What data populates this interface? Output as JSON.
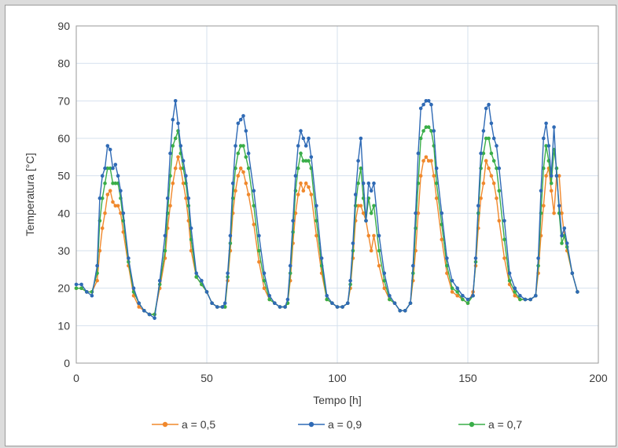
{
  "chart_data": {
    "type": "line",
    "title": "",
    "xlabel": "Tempo [h]",
    "ylabel": "Temperatura [°C]",
    "xlim": [
      0,
      200
    ],
    "ylim": [
      0,
      90
    ],
    "xticks": [
      "0",
      "50",
      "100",
      "150",
      "200"
    ],
    "yticks": [
      "0",
      "10",
      "20",
      "30",
      "40",
      "50",
      "60",
      "70",
      "80",
      "90"
    ],
    "grid": true,
    "legend_position": "bottom",
    "series": [
      {
        "name": "a = 0,5",
        "color": "#f0882c",
        "x": [
          0,
          2,
          4,
          6,
          8,
          9,
          10,
          11,
          12,
          13,
          14,
          15,
          16,
          17,
          18,
          20,
          22,
          24,
          26,
          28,
          30,
          32,
          34,
          35,
          36,
          37,
          38,
          39,
          40,
          41,
          42,
          43,
          44,
          46,
          48,
          50,
          52,
          54,
          56,
          57,
          58,
          59,
          60,
          61,
          62,
          63,
          64,
          65,
          66,
          68,
          70,
          72,
          74,
          76,
          78,
          80,
          81,
          82,
          83,
          84,
          85,
          86,
          87,
          88,
          89,
          90,
          92,
          94,
          96,
          98,
          100,
          102,
          104,
          105,
          106,
          107,
          108,
          109,
          110,
          111,
          112,
          113,
          114,
          116,
          118,
          120,
          122,
          124,
          126,
          128,
          129,
          130,
          131,
          132,
          133,
          134,
          135,
          136,
          137,
          138,
          140,
          142,
          144,
          146,
          148,
          150,
          152,
          153,
          154,
          155,
          156,
          157,
          158,
          159,
          160,
          161,
          162,
          164,
          166,
          168,
          170,
          172,
          174,
          176,
          177,
          178,
          179,
          180,
          181,
          182,
          183,
          184,
          185,
          186,
          187,
          188,
          190,
          192
        ],
        "values": [
          20,
          20,
          19,
          19,
          22,
          30,
          36,
          40,
          45,
          46,
          43,
          42,
          42,
          40,
          35,
          26,
          18,
          15,
          14,
          13,
          13,
          20,
          28,
          36,
          42,
          48,
          52,
          55,
          52,
          48,
          44,
          38,
          30,
          23,
          21,
          19,
          16,
          15,
          15,
          15,
          22,
          30,
          40,
          46,
          50,
          52,
          51,
          48,
          45,
          37,
          27,
          20,
          17,
          16,
          15,
          15,
          16,
          22,
          32,
          40,
          45,
          48,
          46,
          48,
          47,
          45,
          34,
          24,
          17,
          16,
          15,
          15,
          16,
          20,
          28,
          38,
          42,
          42,
          40,
          38,
          34,
          30,
          34,
          26,
          20,
          17,
          16,
          14,
          14,
          16,
          22,
          30,
          40,
          50,
          54,
          55,
          54,
          54,
          50,
          44,
          33,
          24,
          19,
          18,
          17,
          16,
          19,
          26,
          36,
          44,
          48,
          54,
          52,
          50,
          48,
          44,
          38,
          28,
          21,
          18,
          17,
          17,
          17,
          18,
          24,
          34,
          42,
          50,
          52,
          46,
          40,
          50,
          50,
          40,
          34,
          30,
          24,
          19
        ]
      },
      {
        "name": "a = 0,9",
        "color": "#2f6ab5",
        "x": [
          0,
          2,
          4,
          6,
          8,
          9,
          10,
          11,
          12,
          13,
          14,
          15,
          16,
          17,
          18,
          20,
          22,
          24,
          26,
          28,
          30,
          32,
          34,
          35,
          36,
          37,
          38,
          39,
          40,
          41,
          42,
          43,
          44,
          46,
          48,
          50,
          52,
          54,
          56,
          57,
          58,
          59,
          60,
          61,
          62,
          63,
          64,
          65,
          66,
          68,
          70,
          72,
          74,
          76,
          78,
          80,
          81,
          82,
          83,
          84,
          85,
          86,
          87,
          88,
          89,
          90,
          92,
          94,
          96,
          98,
          100,
          102,
          104,
          105,
          106,
          107,
          108,
          109,
          110,
          111,
          112,
          113,
          114,
          116,
          118,
          120,
          122,
          124,
          126,
          128,
          129,
          130,
          131,
          132,
          133,
          134,
          135,
          136,
          137,
          138,
          140,
          142,
          144,
          146,
          148,
          150,
          152,
          153,
          154,
          155,
          156,
          157,
          158,
          159,
          160,
          161,
          162,
          164,
          166,
          168,
          170,
          172,
          174,
          176,
          177,
          178,
          179,
          180,
          181,
          182,
          183,
          184,
          185,
          186,
          187,
          188,
          190,
          192
        ],
        "values": [
          21,
          21,
          19,
          18,
          26,
          44,
          50,
          52,
          58,
          57,
          52,
          53,
          50,
          46,
          40,
          28,
          20,
          16,
          14,
          13,
          12,
          22,
          34,
          44,
          56,
          65,
          70,
          64,
          58,
          54,
          50,
          44,
          36,
          24,
          22,
          19,
          16,
          15,
          15,
          16,
          24,
          34,
          48,
          58,
          64,
          65,
          66,
          62,
          56,
          46,
          34,
          24,
          18,
          16,
          15,
          15,
          17,
          26,
          38,
          50,
          58,
          62,
          60,
          58,
          60,
          55,
          42,
          28,
          18,
          16,
          15,
          15,
          16,
          22,
          32,
          45,
          54,
          60,
          48,
          38,
          48,
          46,
          48,
          34,
          24,
          18,
          16,
          14,
          14,
          16,
          26,
          40,
          56,
          68,
          69,
          70,
          70,
          69,
          62,
          52,
          40,
          28,
          22,
          20,
          18,
          17,
          18,
          28,
          42,
          56,
          62,
          68,
          69,
          64,
          60,
          58,
          52,
          38,
          24,
          20,
          18,
          17,
          17,
          18,
          28,
          46,
          60,
          64,
          58,
          50,
          63,
          50,
          42,
          34,
          36,
          32,
          24,
          19
        ]
      },
      {
        "name": "a = 0,7",
        "color": "#3aae49",
        "x": [
          0,
          2,
          4,
          6,
          8,
          9,
          10,
          11,
          12,
          13,
          14,
          15,
          16,
          17,
          18,
          20,
          22,
          24,
          26,
          28,
          30,
          32,
          34,
          35,
          36,
          37,
          38,
          39,
          40,
          41,
          42,
          43,
          44,
          46,
          48,
          50,
          52,
          54,
          56,
          57,
          58,
          59,
          60,
          61,
          62,
          63,
          64,
          65,
          66,
          68,
          70,
          72,
          74,
          76,
          78,
          80,
          81,
          82,
          83,
          84,
          85,
          86,
          87,
          88,
          89,
          90,
          92,
          94,
          96,
          98,
          100,
          102,
          104,
          105,
          106,
          107,
          108,
          109,
          110,
          111,
          112,
          113,
          114,
          116,
          118,
          120,
          122,
          124,
          126,
          128,
          129,
          130,
          131,
          132,
          133,
          134,
          135,
          136,
          137,
          138,
          140,
          142,
          144,
          146,
          148,
          150,
          152,
          153,
          154,
          155,
          156,
          157,
          158,
          159,
          160,
          161,
          162,
          164,
          166,
          168,
          170,
          172,
          174,
          176,
          177,
          178,
          179,
          180,
          181,
          182,
          183,
          184,
          185,
          186,
          187,
          188,
          190,
          192
        ],
        "values": [
          20,
          20,
          19,
          19,
          24,
          38,
          44,
          48,
          52,
          52,
          48,
          48,
          48,
          44,
          38,
          27,
          19,
          16,
          14,
          13,
          13,
          21,
          30,
          40,
          50,
          58,
          60,
          62,
          56,
          52,
          48,
          42,
          33,
          23,
          21,
          19,
          16,
          15,
          15,
          15,
          23,
          32,
          44,
          52,
          56,
          58,
          58,
          55,
          52,
          42,
          30,
          22,
          17,
          16,
          15,
          15,
          16,
          24,
          35,
          46,
          52,
          56,
          54,
          54,
          54,
          52,
          38,
          26,
          17,
          16,
          15,
          15,
          16,
          21,
          30,
          42,
          48,
          52,
          44,
          38,
          44,
          40,
          42,
          30,
          22,
          17,
          16,
          14,
          14,
          16,
          24,
          36,
          48,
          60,
          62,
          63,
          63,
          62,
          58,
          48,
          37,
          26,
          20,
          19,
          17,
          16,
          18,
          27,
          40,
          52,
          56,
          60,
          60,
          56,
          54,
          52,
          46,
          33,
          22,
          19,
          17,
          17,
          17,
          18,
          26,
          40,
          52,
          58,
          54,
          48,
          57,
          52,
          40,
          32,
          34,
          31,
          24,
          19
        ]
      }
    ]
  }
}
